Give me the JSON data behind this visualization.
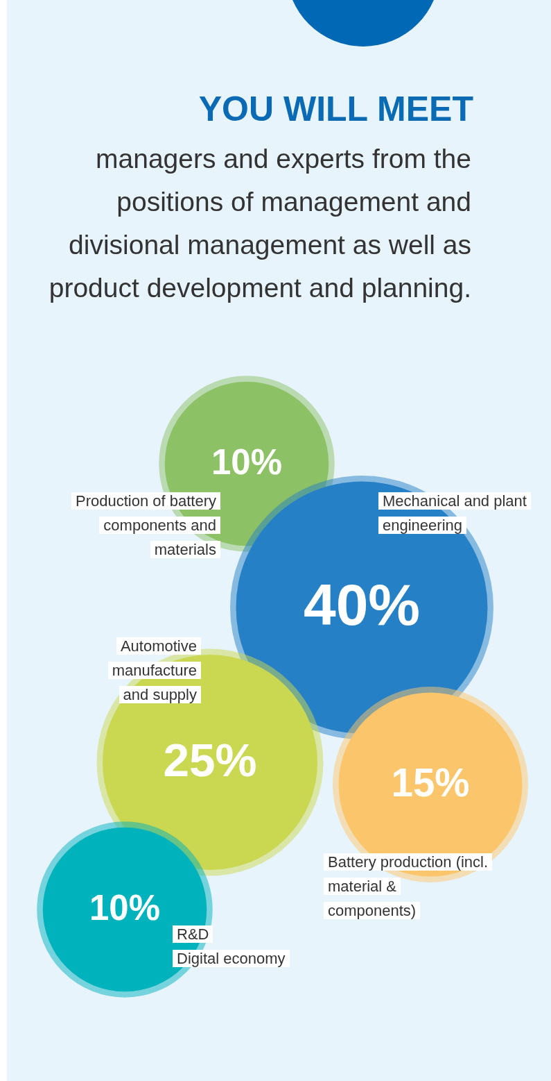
{
  "chart_data": {
    "type": "other",
    "title": "YOU WILL MEET",
    "subtitle": "managers and experts from the positions of management and divisional management as well as product development and planning.",
    "categories": [
      "Production of battery components and materials",
      "Mechanical and plant engineering",
      "Automotive manufacture and supply",
      "Battery production (incl. material & components)",
      "R&D\nDigital economy"
    ],
    "values": [
      10,
      40,
      25,
      15,
      10
    ],
    "value_labels": [
      "10%",
      "40%",
      "25%",
      "15%",
      "10%"
    ],
    "colors": [
      "#8cc265",
      "#2680c5",
      "#cad750",
      "#fbc66b",
      "#00b2bb"
    ]
  }
}
